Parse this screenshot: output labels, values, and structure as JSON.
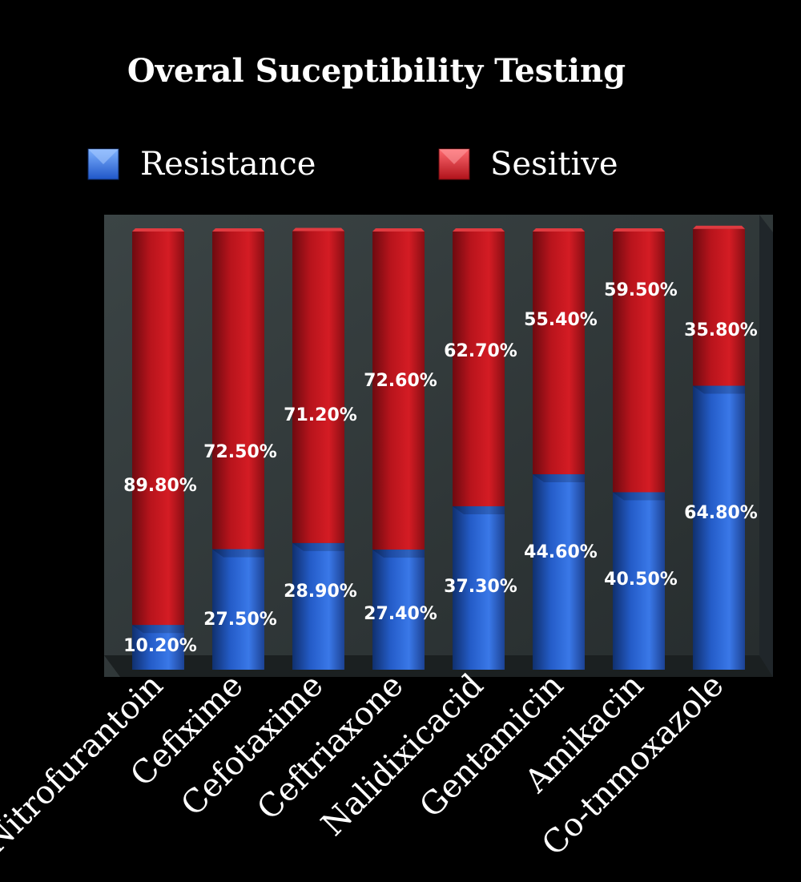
{
  "chart_data": {
    "type": "bar",
    "stacked": true,
    "percent": true,
    "title": "Overal Suceptibility Testing",
    "categories": [
      "Nitrofurantoin",
      "Cefixime",
      "Cefotaxime",
      "Ceftriaxone",
      "Nalidixicacid",
      "Gentamicin",
      "Amikacin",
      "Co-tnmoxazole"
    ],
    "series": [
      {
        "name": "Resistance",
        "color": "#2f6fe0",
        "values": [
          10.2,
          27.5,
          28.9,
          27.4,
          37.3,
          44.6,
          40.5,
          64.8
        ],
        "labels": [
          "10.20%",
          "27.50%",
          "28.90%",
          "27.40%",
          "37.30%",
          "44.60%",
          "40.50%",
          "64.80%"
        ]
      },
      {
        "name": "Sesitive",
        "color": "#c8161e",
        "values": [
          89.8,
          72.5,
          71.2,
          72.6,
          62.7,
          55.4,
          59.5,
          35.8
        ],
        "labels": [
          "89.80%",
          "72.50%",
          "71.20%",
          "72.60%",
          "62.70%",
          "55.40%",
          "59.50%",
          "35.80%"
        ]
      }
    ],
    "ylim": [
      0,
      100
    ],
    "legend_position": "top",
    "background": "#000000",
    "plot_background": "#2e3536"
  }
}
